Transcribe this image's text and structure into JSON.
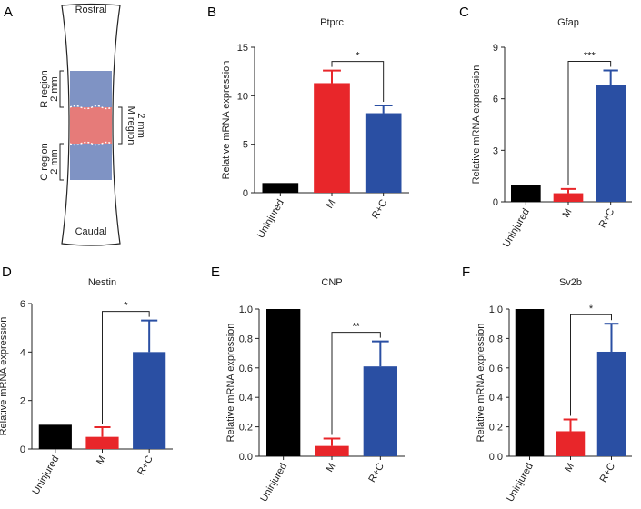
{
  "diagram": {
    "panel": "A",
    "rostral": "Rostral",
    "caudal": "Caudal",
    "regions": [
      {
        "name": "R region",
        "size": "2 mm"
      },
      {
        "name": "M region",
        "size": "2 mm"
      },
      {
        "name": "C region",
        "size": "2 mm"
      }
    ]
  },
  "chart_data": [
    {
      "type": "bar",
      "panel": "B",
      "title": "Ptprc",
      "y_label": "Relative mRNA expression",
      "categories": [
        "Uninjured",
        "M",
        "R+C"
      ],
      "values": [
        1,
        11.3,
        8.2
      ],
      "errors": [
        0,
        1.3,
        0.8
      ],
      "colors": [
        "#000000",
        "#e8262a",
        "#2a4fa3"
      ],
      "annotation": "*",
      "ylim": [
        0,
        15
      ],
      "yticks": [
        0,
        5,
        10,
        15
      ]
    },
    {
      "type": "bar",
      "panel": "C",
      "title": "Gfap",
      "y_label": "Relative mRNA expression",
      "categories": [
        "Uninjured",
        "M",
        "R+C"
      ],
      "values": [
        1,
        0.5,
        6.8
      ],
      "errors": [
        0,
        0.25,
        0.85
      ],
      "colors": [
        "#000000",
        "#e8262a",
        "#2a4fa3"
      ],
      "annotation": "***",
      "ylim": [
        0,
        9
      ],
      "yticks": [
        0,
        3,
        6,
        9
      ]
    },
    {
      "type": "bar",
      "panel": "D",
      "title": "Nestin",
      "y_label": "Relative mRNA expression",
      "categories": [
        "Uninjured",
        "M",
        "R+C"
      ],
      "values": [
        1,
        0.5,
        4.0
      ],
      "errors": [
        0,
        0.4,
        1.3
      ],
      "colors": [
        "#000000",
        "#e8262a",
        "#2a4fa3"
      ],
      "annotation": "*",
      "ylim": [
        0,
        6
      ],
      "yticks": [
        0,
        2,
        4,
        6
      ]
    },
    {
      "type": "bar",
      "panel": "E",
      "title": "CNP",
      "y_label": "Relative mRNA expression",
      "categories": [
        "Uninjured",
        "M",
        "R+C"
      ],
      "values": [
        1.0,
        0.07,
        0.61
      ],
      "errors": [
        0,
        0.05,
        0.17
      ],
      "colors": [
        "#000000",
        "#e8262a",
        "#2a4fa3"
      ],
      "annotation": "**",
      "ylim": [
        0,
        1
      ],
      "yticks": [
        {
          "value": 0,
          "label": "0.0"
        },
        0.2,
        0.4,
        0.6,
        0.8,
        {
          "value": 1,
          "label": "1.0"
        }
      ]
    },
    {
      "type": "bar",
      "panel": "F",
      "title": "Sv2b",
      "y_label": "Relative mRNA expression",
      "categories": [
        "Uninjured",
        "M",
        "R+C"
      ],
      "values": [
        1.0,
        0.17,
        0.71
      ],
      "errors": [
        0,
        0.08,
        0.19
      ],
      "colors": [
        "#000000",
        "#e8262a",
        "#2a4fa3"
      ],
      "annotation": "*",
      "ylim": [
        0,
        1
      ],
      "yticks": [
        {
          "value": 0,
          "label": "0.0"
        },
        0.2,
        0.4,
        0.6,
        0.8,
        {
          "value": 1,
          "label": "1.0"
        }
      ]
    }
  ]
}
